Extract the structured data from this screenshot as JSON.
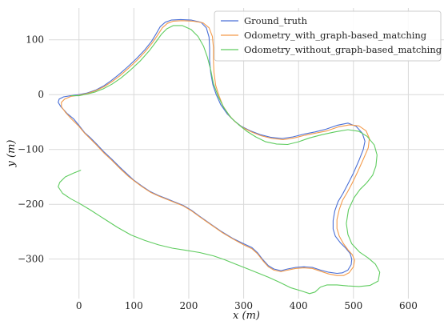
{
  "chart_data": {
    "type": "line",
    "title": "",
    "xlabel": "x (m)",
    "ylabel": "y (m)",
    "xlim": [
      -55,
      665
    ],
    "ylim": [
      -372,
      158
    ],
    "x_ticks": [
      0,
      100,
      200,
      300,
      400,
      500,
      600
    ],
    "y_ticks": [
      100,
      0,
      -100,
      -200,
      -300
    ],
    "x_tick_labels": [
      "0",
      "100",
      "200",
      "300",
      "400",
      "500",
      "600"
    ],
    "y_tick_labels": [
      "100",
      "0",
      "−100",
      "−200",
      "−300"
    ],
    "grid": true,
    "legend_position": "top-right",
    "series": [
      {
        "name": "Ground_truth",
        "color": "#4a6fd6",
        "points": [
          [
            0,
            -56
          ],
          [
            10,
            -69
          ],
          [
            20,
            -78
          ],
          [
            32,
            -90
          ],
          [
            45,
            -104
          ],
          [
            60,
            -118
          ],
          [
            75,
            -133
          ],
          [
            90,
            -147
          ],
          [
            100,
            -156
          ],
          [
            115,
            -167
          ],
          [
            130,
            -177
          ],
          [
            145,
            -184
          ],
          [
            160,
            -190
          ],
          [
            175,
            -196
          ],
          [
            190,
            -202
          ],
          [
            205,
            -211
          ],
          [
            220,
            -222
          ],
          [
            240,
            -236
          ],
          [
            260,
            -250
          ],
          [
            280,
            -262
          ],
          [
            300,
            -272
          ],
          [
            315,
            -279
          ],
          [
            325,
            -288
          ],
          [
            335,
            -301
          ],
          [
            345,
            -312
          ],
          [
            355,
            -318
          ],
          [
            368,
            -321
          ],
          [
            380,
            -318
          ],
          [
            395,
            -315
          ],
          [
            410,
            -314
          ],
          [
            425,
            -315
          ],
          [
            440,
            -320
          ],
          [
            455,
            -324
          ],
          [
            470,
            -326
          ],
          [
            480,
            -325
          ],
          [
            490,
            -320
          ],
          [
            496,
            -310
          ],
          [
            497,
            -300
          ],
          [
            494,
            -290
          ],
          [
            486,
            -280
          ],
          [
            476,
            -270
          ],
          [
            467,
            -258
          ],
          [
            463,
            -245
          ],
          [
            463,
            -230
          ],
          [
            466,
            -212
          ],
          [
            472,
            -195
          ],
          [
            481,
            -180
          ],
          [
            490,
            -163
          ],
          [
            500,
            -143
          ],
          [
            510,
            -120
          ],
          [
            518,
            -100
          ],
          [
            521,
            -85
          ],
          [
            516,
            -70
          ],
          [
            505,
            -58
          ],
          [
            490,
            -52
          ],
          [
            470,
            -56
          ],
          [
            450,
            -63
          ],
          [
            430,
            -68
          ],
          [
            410,
            -72
          ],
          [
            390,
            -77
          ],
          [
            370,
            -80
          ],
          [
            350,
            -78
          ],
          [
            330,
            -73
          ],
          [
            312,
            -66
          ],
          [
            296,
            -58
          ],
          [
            283,
            -48
          ],
          [
            270,
            -35
          ],
          [
            258,
            -18
          ],
          [
            250,
            0
          ],
          [
            244,
            18
          ],
          [
            240,
            40
          ],
          [
            238,
            62
          ],
          [
            238,
            85
          ],
          [
            237,
            105
          ],
          [
            232,
            122
          ],
          [
            222,
            132
          ],
          [
            205,
            136
          ],
          [
            185,
            137
          ],
          [
            168,
            136
          ],
          [
            157,
            132
          ],
          [
            148,
            124
          ],
          [
            140,
            110
          ],
          [
            132,
            97
          ],
          [
            120,
            82
          ],
          [
            105,
            66
          ],
          [
            88,
            50
          ],
          [
            72,
            36
          ],
          [
            58,
            25
          ],
          [
            45,
            16
          ],
          [
            30,
            8
          ],
          [
            15,
            3
          ],
          [
            0,
            0
          ],
          [
            -15,
            -2
          ],
          [
            -28,
            -4
          ],
          [
            -36,
            -8
          ],
          [
            -38,
            -14
          ],
          [
            -33,
            -22
          ],
          [
            -22,
            -34
          ],
          [
            -10,
            -44
          ],
          [
            0,
            -56
          ]
        ]
      },
      {
        "name": "Odometry_with_graph-based_matching",
        "color": "#f39b4b",
        "points": [
          [
            0,
            -58
          ],
          [
            10,
            -70
          ],
          [
            20,
            -80
          ],
          [
            32,
            -92
          ],
          [
            45,
            -106
          ],
          [
            60,
            -120
          ],
          [
            75,
            -135
          ],
          [
            90,
            -149
          ],
          [
            100,
            -157
          ],
          [
            115,
            -168
          ],
          [
            130,
            -178
          ],
          [
            145,
            -185
          ],
          [
            160,
            -191
          ],
          [
            175,
            -197
          ],
          [
            190,
            -203
          ],
          [
            205,
            -212
          ],
          [
            220,
            -223
          ],
          [
            240,
            -237
          ],
          [
            260,
            -251
          ],
          [
            280,
            -263
          ],
          [
            300,
            -274
          ],
          [
            315,
            -281
          ],
          [
            325,
            -290
          ],
          [
            335,
            -303
          ],
          [
            345,
            -314
          ],
          [
            355,
            -320
          ],
          [
            368,
            -323
          ],
          [
            380,
            -320
          ],
          [
            395,
            -317
          ],
          [
            410,
            -316
          ],
          [
            425,
            -317
          ],
          [
            440,
            -322
          ],
          [
            455,
            -327
          ],
          [
            470,
            -330
          ],
          [
            482,
            -330
          ],
          [
            492,
            -325
          ],
          [
            500,
            -314
          ],
          [
            502,
            -302
          ],
          [
            498,
            -292
          ],
          [
            490,
            -283
          ],
          [
            482,
            -272
          ],
          [
            474,
            -258
          ],
          [
            470,
            -244
          ],
          [
            470,
            -228
          ],
          [
            474,
            -210
          ],
          [
            480,
            -193
          ],
          [
            489,
            -178
          ],
          [
            498,
            -161
          ],
          [
            508,
            -140
          ],
          [
            518,
            -118
          ],
          [
            527,
            -97
          ],
          [
            529,
            -80
          ],
          [
            523,
            -66
          ],
          [
            510,
            -57
          ],
          [
            493,
            -55
          ],
          [
            472,
            -59
          ],
          [
            452,
            -66
          ],
          [
            432,
            -70
          ],
          [
            412,
            -74
          ],
          [
            392,
            -79
          ],
          [
            372,
            -82
          ],
          [
            352,
            -80
          ],
          [
            332,
            -75
          ],
          [
            314,
            -68
          ],
          [
            298,
            -60
          ],
          [
            285,
            -50
          ],
          [
            273,
            -37
          ],
          [
            262,
            -20
          ],
          [
            255,
            -2
          ],
          [
            249,
            17
          ],
          [
            246,
            40
          ],
          [
            245,
            64
          ],
          [
            245,
            86
          ],
          [
            243,
            106
          ],
          [
            237,
            122
          ],
          [
            226,
            131
          ],
          [
            208,
            134
          ],
          [
            188,
            135
          ],
          [
            172,
            134
          ],
          [
            161,
            130
          ],
          [
            152,
            122
          ],
          [
            143,
            108
          ],
          [
            134,
            95
          ],
          [
            122,
            80
          ],
          [
            107,
            64
          ],
          [
            90,
            48
          ],
          [
            74,
            34
          ],
          [
            59,
            23
          ],
          [
            45,
            14
          ],
          [
            30,
            7
          ],
          [
            15,
            2
          ],
          [
            0,
            -1
          ],
          [
            -14,
            -3
          ],
          [
            -26,
            -8
          ],
          [
            -32,
            -14
          ],
          [
            -32,
            -22
          ],
          [
            -25,
            -32
          ],
          [
            -14,
            -44
          ],
          [
            0,
            -58
          ]
        ]
      },
      {
        "name": "Odometry_without_graph-based_matching",
        "color": "#5fcc5f",
        "points": [
          [
            3,
            -138
          ],
          [
            -10,
            -143
          ],
          [
            -25,
            -150
          ],
          [
            -35,
            -160
          ],
          [
            -38,
            -168
          ],
          [
            -30,
            -180
          ],
          [
            -15,
            -190
          ],
          [
            0,
            -198
          ],
          [
            20,
            -210
          ],
          [
            45,
            -226
          ],
          [
            70,
            -242
          ],
          [
            95,
            -256
          ],
          [
            120,
            -266
          ],
          [
            145,
            -274
          ],
          [
            170,
            -280
          ],
          [
            195,
            -284
          ],
          [
            220,
            -288
          ],
          [
            245,
            -294
          ],
          [
            265,
            -301
          ],
          [
            285,
            -309
          ],
          [
            305,
            -317
          ],
          [
            325,
            -325
          ],
          [
            345,
            -333
          ],
          [
            365,
            -342
          ],
          [
            385,
            -352
          ],
          [
            405,
            -358
          ],
          [
            420,
            -363
          ],
          [
            430,
            -360
          ],
          [
            440,
            -351
          ],
          [
            452,
            -347
          ],
          [
            470,
            -347
          ],
          [
            490,
            -349
          ],
          [
            510,
            -350
          ],
          [
            530,
            -348
          ],
          [
            545,
            -340
          ],
          [
            548,
            -324
          ],
          [
            540,
            -309
          ],
          [
            527,
            -298
          ],
          [
            511,
            -287
          ],
          [
            497,
            -272
          ],
          [
            490,
            -255
          ],
          [
            487,
            -235
          ],
          [
            491,
            -210
          ],
          [
            501,
            -188
          ],
          [
            512,
            -173
          ],
          [
            524,
            -161
          ],
          [
            535,
            -147
          ],
          [
            541,
            -130
          ],
          [
            543,
            -110
          ],
          [
            538,
            -92
          ],
          [
            525,
            -76
          ],
          [
            510,
            -67
          ],
          [
            490,
            -64
          ],
          [
            466,
            -68
          ],
          [
            443,
            -73
          ],
          [
            420,
            -79
          ],
          [
            400,
            -86
          ],
          [
            380,
            -91
          ],
          [
            360,
            -90
          ],
          [
            340,
            -86
          ],
          [
            322,
            -77
          ],
          [
            306,
            -67
          ],
          [
            291,
            -55
          ],
          [
            277,
            -42
          ],
          [
            264,
            -24
          ],
          [
            254,
            -4
          ],
          [
            245,
            20
          ],
          [
            240,
            45
          ],
          [
            234,
            68
          ],
          [
            227,
            88
          ],
          [
            217,
            106
          ],
          [
            204,
            119
          ],
          [
            188,
            126
          ],
          [
            172,
            126
          ],
          [
            160,
            120
          ],
          [
            150,
            110
          ],
          [
            140,
            96
          ],
          [
            128,
            80
          ],
          [
            112,
            62
          ],
          [
            94,
            45
          ],
          [
            76,
            30
          ],
          [
            60,
            19
          ],
          [
            45,
            11
          ],
          [
            30,
            5
          ],
          [
            15,
            1
          ],
          [
            0,
            -2
          ],
          [
            -14,
            -2
          ]
        ]
      }
    ]
  }
}
